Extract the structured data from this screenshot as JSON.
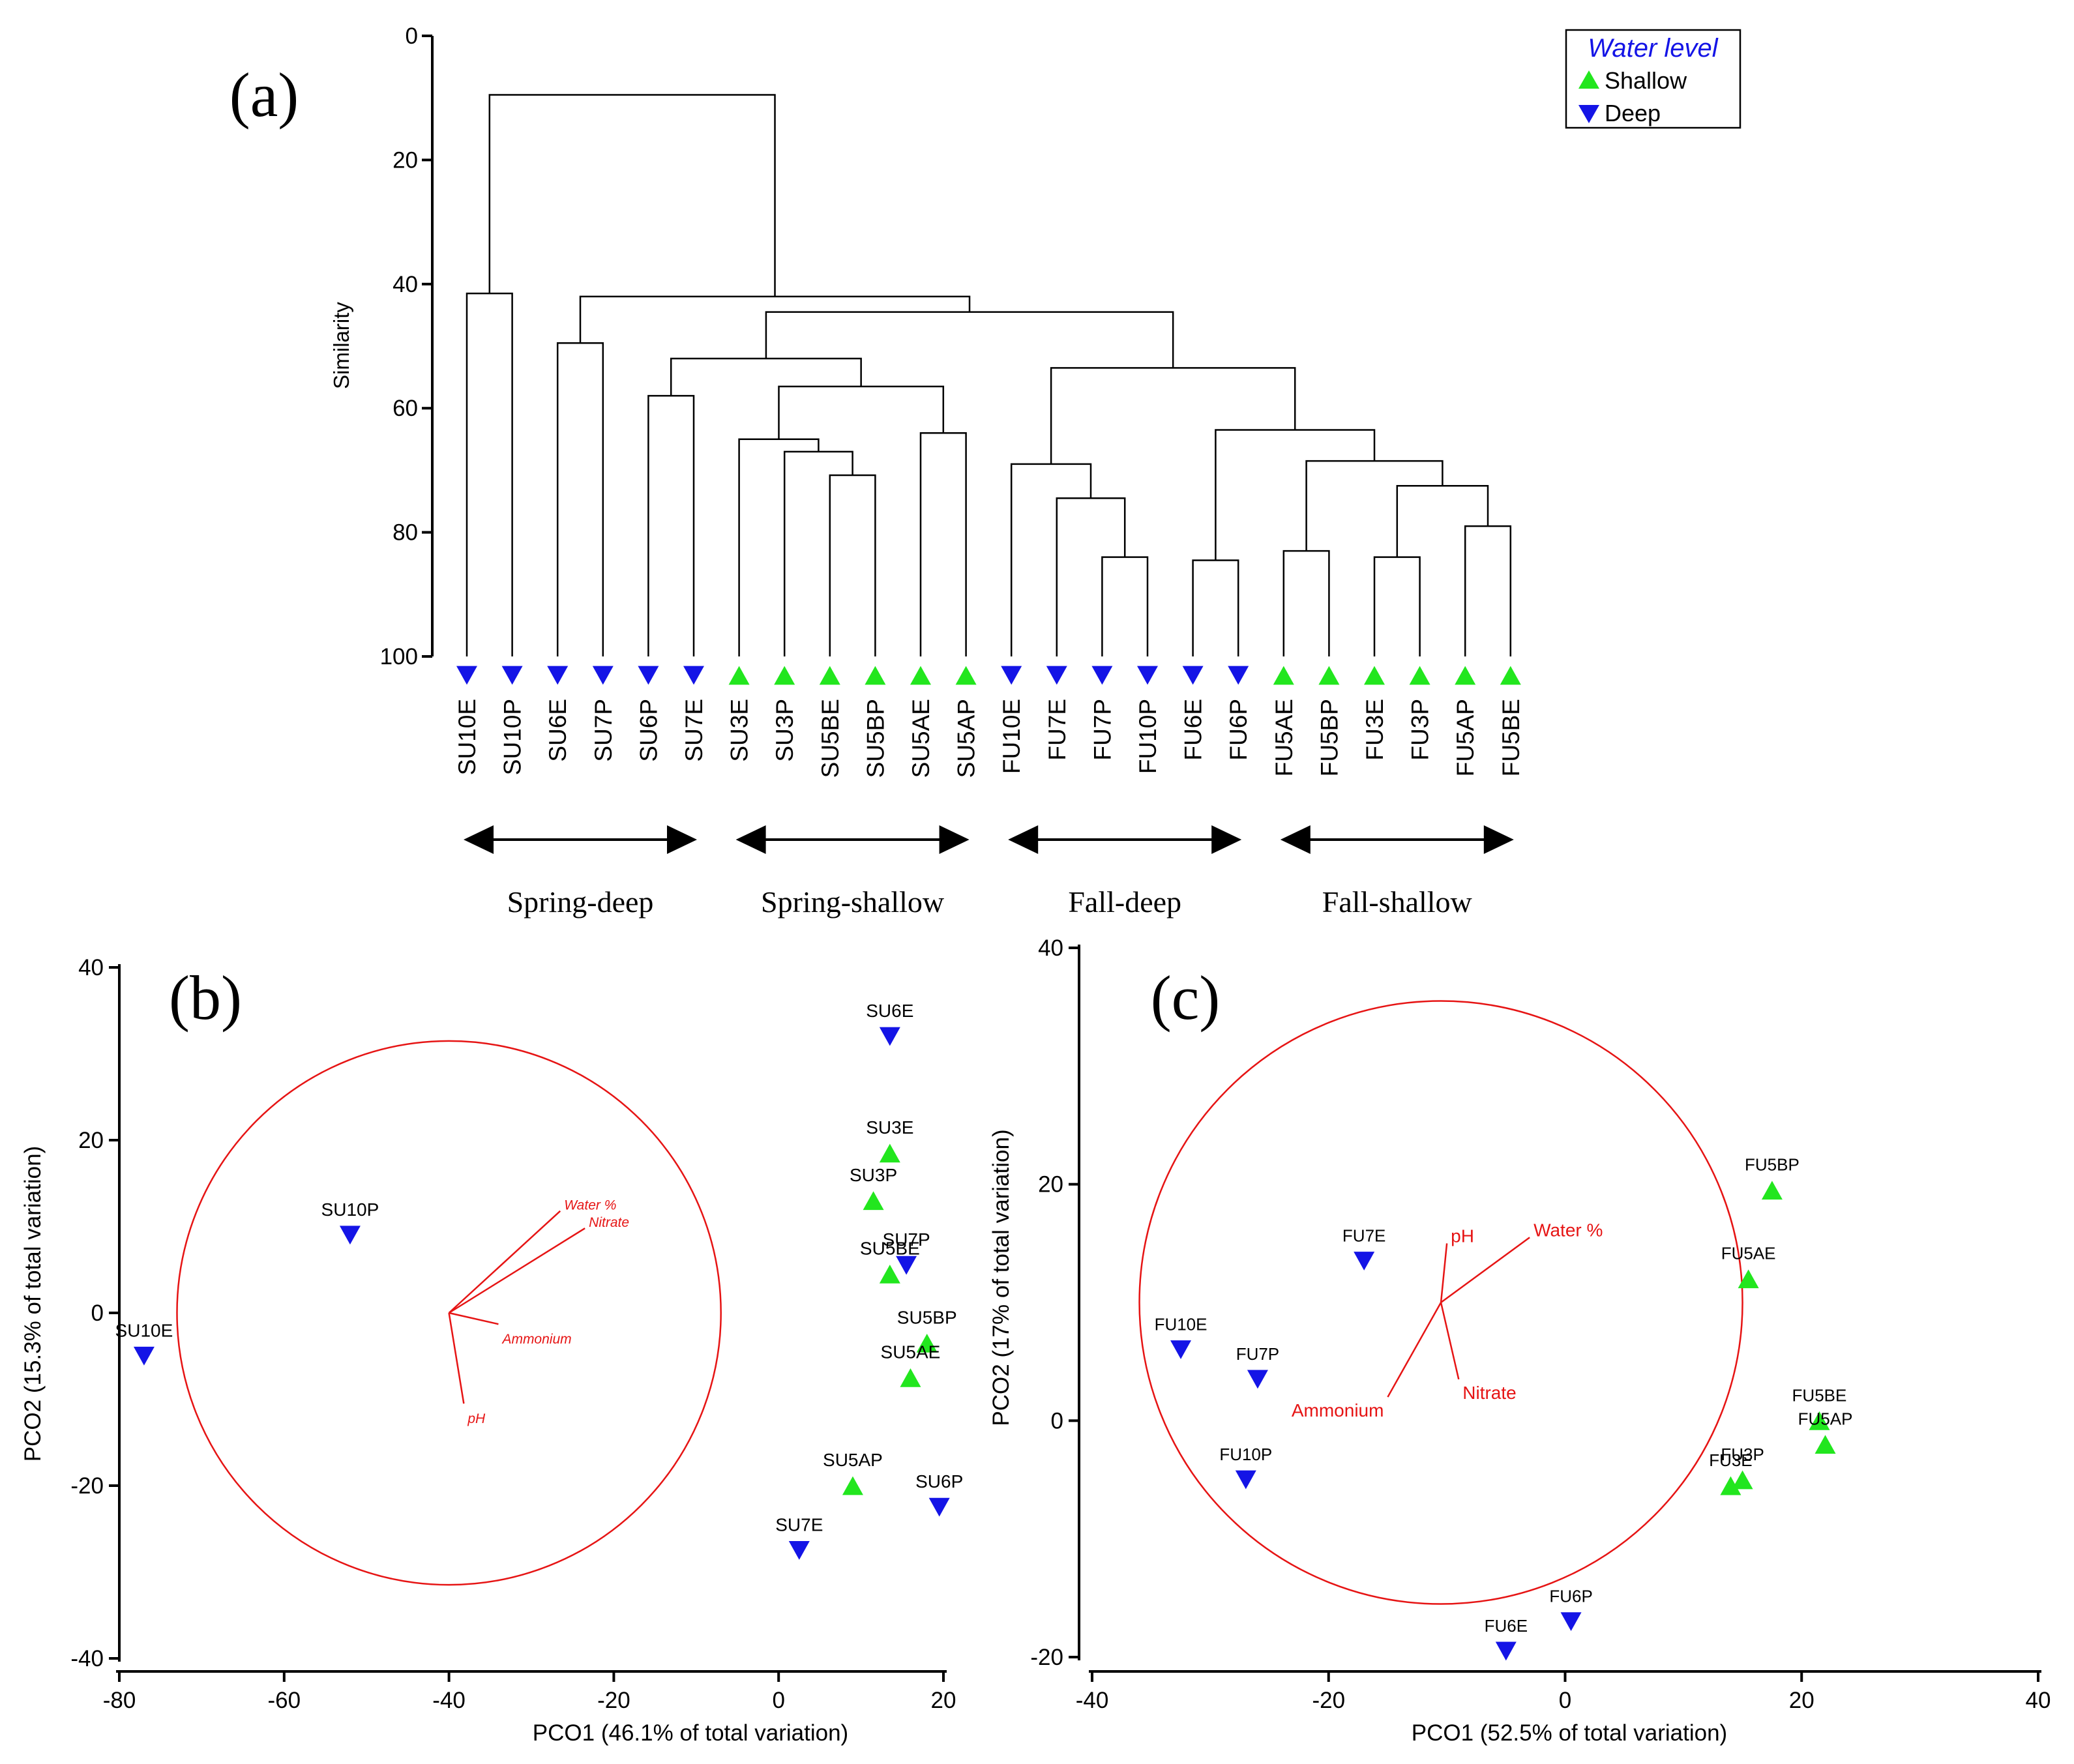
{
  "colors": {
    "shallow": "#22e61e",
    "deep": "#1414e6",
    "vector": "#e61414",
    "line": "#000000",
    "legend_title": "#1414e6"
  },
  "chart_data": [
    {
      "panel": "(a)",
      "type": "dendrogram",
      "ylabel": "Similarity",
      "ylim": [
        0,
        100
      ],
      "y_ticks": [
        "0",
        "20",
        "40",
        "60",
        "80",
        "100"
      ],
      "legend": {
        "title": "Water level",
        "placement": "top-right",
        "entries": [
          {
            "label": "Shallow",
            "marker": "triangle-up",
            "color_key": "shallow"
          },
          {
            "label": "Deep",
            "marker": "triangle-down",
            "color_key": "deep"
          }
        ]
      },
      "leaves": [
        {
          "label": "SU10E",
          "level": "Deep"
        },
        {
          "label": "SU10P",
          "level": "Deep"
        },
        {
          "label": "SU6E",
          "level": "Deep"
        },
        {
          "label": "SU7P",
          "level": "Deep"
        },
        {
          "label": "SU6P",
          "level": "Deep"
        },
        {
          "label": "SU7E",
          "level": "Deep"
        },
        {
          "label": "SU3E",
          "level": "Shallow"
        },
        {
          "label": "SU3P",
          "level": "Shallow"
        },
        {
          "label": "SU5BE",
          "level": "Shallow"
        },
        {
          "label": "SU5BP",
          "level": "Shallow"
        },
        {
          "label": "SU5AE",
          "level": "Shallow"
        },
        {
          "label": "SU5AP",
          "level": "Shallow"
        },
        {
          "label": "FU10E",
          "level": "Deep"
        },
        {
          "label": "FU7E",
          "level": "Deep"
        },
        {
          "label": "FU7P",
          "level": "Deep"
        },
        {
          "label": "FU10P",
          "level": "Deep"
        },
        {
          "label": "FU6E",
          "level": "Deep"
        },
        {
          "label": "FU6P",
          "level": "Deep"
        },
        {
          "label": "FU5AE",
          "level": "Shallow"
        },
        {
          "label": "FU5BP",
          "level": "Shallow"
        },
        {
          "label": "FU3E",
          "level": "Shallow"
        },
        {
          "label": "FU3P",
          "level": "Shallow"
        },
        {
          "label": "FU5AP",
          "level": "Shallow"
        },
        {
          "label": "FU5BE",
          "level": "Shallow"
        }
      ],
      "merges": [
        {
          "id": "n1",
          "left": "SU10E",
          "right": "SU10P",
          "similarity": 41.5
        },
        {
          "id": "n2",
          "left": "SU6E",
          "right": "SU7P",
          "similarity": 49.5
        },
        {
          "id": "n3",
          "left": "SU6P",
          "right": "SU7E",
          "similarity": 58
        },
        {
          "id": "n4",
          "left": "SU5BE",
          "right": "SU5BP",
          "similarity": 70.8
        },
        {
          "id": "n5",
          "left": "SU3P",
          "right": "n4",
          "similarity": 67
        },
        {
          "id": "n6",
          "left": "SU3E",
          "right": "n5",
          "similarity": 65
        },
        {
          "id": "n7",
          "left": "SU5AE",
          "right": "SU5AP",
          "similarity": 64
        },
        {
          "id": "n8",
          "left": "n6",
          "right": "n7",
          "similarity": 56.5
        },
        {
          "id": "n9",
          "left": "n3",
          "right": "n8",
          "similarity": 52
        },
        {
          "id": "n10",
          "left": "FU7P",
          "right": "FU10P",
          "similarity": 84
        },
        {
          "id": "n11",
          "left": "FU7E",
          "right": "n10",
          "similarity": 74.5
        },
        {
          "id": "n12",
          "left": "FU10E",
          "right": "n11",
          "similarity": 69
        },
        {
          "id": "n13",
          "left": "FU6E",
          "right": "FU6P",
          "similarity": 84.5
        },
        {
          "id": "n14",
          "left": "FU5AE",
          "right": "FU5BP",
          "similarity": 83
        },
        {
          "id": "n15",
          "left": "FU3E",
          "right": "FU3P",
          "similarity": 84
        },
        {
          "id": "n16",
          "left": "FU5AP",
          "right": "FU5BE",
          "similarity": 79
        },
        {
          "id": "n17",
          "left": "n15",
          "right": "n16",
          "similarity": 72.5
        },
        {
          "id": "n18",
          "left": "n14",
          "right": "n17",
          "similarity": 68.5
        },
        {
          "id": "n19",
          "left": "n13",
          "right": "n18",
          "similarity": 63.5
        },
        {
          "id": "n20",
          "left": "n12",
          "right": "n19",
          "similarity": 53.5
        },
        {
          "id": "n21",
          "left": "n9",
          "right": "n20",
          "similarity": 44.5
        },
        {
          "id": "n22",
          "left": "n2",
          "right": "n21",
          "similarity": 42
        },
        {
          "id": "n23",
          "left": "n1",
          "right": "n22",
          "similarity": 9.5
        }
      ],
      "groups": [
        {
          "label": "Spring-deep",
          "from": "SU10E",
          "to": "SU7E"
        },
        {
          "label": "Spring-shallow",
          "from": "SU3E",
          "to": "SU5AP"
        },
        {
          "label": "Fall-deep",
          "from": "FU10E",
          "to": "FU6P"
        },
        {
          "label": "Fall-shallow",
          "from": "FU5AE",
          "to": "FU5BE"
        }
      ]
    },
    {
      "panel": "(b)",
      "type": "scatter",
      "xlabel": "PCO1 (46.1% of total variation)",
      "ylabel": "PCO2 (15.3% of total variation)",
      "xlim": [
        -80,
        20
      ],
      "ylim": [
        -40,
        40
      ],
      "x_ticks": [
        -80,
        -60,
        -40,
        -20,
        0,
        20
      ],
      "y_ticks": [
        -40,
        -20,
        0,
        20,
        40
      ],
      "circle": {
        "center": [
          -40,
          0
        ],
        "radius_x_units": 33
      },
      "vectors": [
        {
          "label": "Water %",
          "dx": 13.5,
          "dy": 11.8
        },
        {
          "label": "Nitrate",
          "dx": 16.5,
          "dy": 9.8
        },
        {
          "label": "Ammonium",
          "dx": 6,
          "dy": -1.3
        },
        {
          "label": "pH",
          "dx": 1.8,
          "dy": -10.5
        }
      ],
      "points": [
        {
          "label": "SU10E",
          "x": -77,
          "y": -5,
          "level": "Deep"
        },
        {
          "label": "SU10P",
          "x": -52,
          "y": 9,
          "level": "Deep"
        },
        {
          "label": "SU6E",
          "x": 13.5,
          "y": 32,
          "level": "Deep"
        },
        {
          "label": "SU3E",
          "x": 13.5,
          "y": 18.5,
          "level": "Shallow"
        },
        {
          "label": "SU3P",
          "x": 11.5,
          "y": 13,
          "level": "Shallow"
        },
        {
          "label": "SU7P",
          "x": 15.5,
          "y": 5.5,
          "level": "Deep"
        },
        {
          "label": "SU5BE",
          "x": 13.5,
          "y": 4.5,
          "level": "Shallow"
        },
        {
          "label": "SU5BP",
          "x": 18,
          "y": -3.5,
          "level": "Shallow"
        },
        {
          "label": "SU5AE",
          "x": 16,
          "y": -7.5,
          "level": "Shallow"
        },
        {
          "label": "SU5AP",
          "x": 9,
          "y": -20,
          "level": "Shallow"
        },
        {
          "label": "SU6P",
          "x": 19.5,
          "y": -22.5,
          "level": "Deep"
        },
        {
          "label": "SU7E",
          "x": 2.5,
          "y": -27.5,
          "level": "Deep"
        }
      ]
    },
    {
      "panel": "(c)",
      "type": "scatter",
      "xlabel": "PCO1 (52.5% of total variation)",
      "ylabel": "PCO2 (17% of total variation)",
      "xlim": [
        -40,
        40
      ],
      "ylim": [
        -20,
        40
      ],
      "x_ticks": [
        -40,
        -20,
        0,
        20,
        40
      ],
      "y_ticks": [
        -20,
        0,
        20,
        40
      ],
      "circle": {
        "center": [
          -10.5,
          10
        ],
        "radius_x_units": 25.5
      },
      "vectors": [
        {
          "label": "Water %",
          "dx": 7.5,
          "dy": 5.5
        },
        {
          "label": "pH",
          "dx": 0.5,
          "dy": 5
        },
        {
          "label": "Nitrate",
          "dx": 1.5,
          "dy": -6.5
        },
        {
          "label": "Ammonium",
          "dx": -4.5,
          "dy": -8
        }
      ],
      "points": [
        {
          "label": "FU7E",
          "x": -17,
          "y": 13.5,
          "level": "Deep"
        },
        {
          "label": "FU10E",
          "x": -32.5,
          "y": 6,
          "level": "Deep"
        },
        {
          "label": "FU7P",
          "x": -26,
          "y": 3.5,
          "level": "Deep"
        },
        {
          "label": "FU10P",
          "x": -27,
          "y": -5,
          "level": "Deep"
        },
        {
          "label": "FU5BP",
          "x": 17.5,
          "y": 19.5,
          "level": "Shallow"
        },
        {
          "label": "FU5AE",
          "x": 15.5,
          "y": 12,
          "level": "Shallow"
        },
        {
          "label": "FU5BE",
          "x": 21.5,
          "y": 0,
          "level": "Shallow"
        },
        {
          "label": "FU5AP",
          "x": 22,
          "y": -2,
          "level": "Shallow"
        },
        {
          "label": "FU3P",
          "x": 15,
          "y": -5,
          "level": "Shallow"
        },
        {
          "label": "FU3E",
          "x": 14,
          "y": -5.5,
          "level": "Shallow"
        },
        {
          "label": "FU6P",
          "x": 0.5,
          "y": -17,
          "level": "Deep"
        },
        {
          "label": "FU6E",
          "x": -5,
          "y": -19.5,
          "level": "Deep"
        }
      ]
    }
  ]
}
